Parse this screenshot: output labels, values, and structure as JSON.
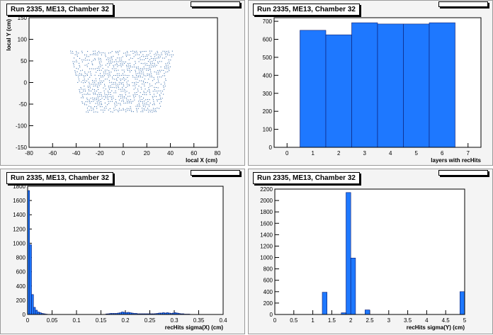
{
  "chart_data": [
    {
      "type": "scatter",
      "title": "Run 2335, ME13, Chamber 32",
      "xlabel": "local X (cm)",
      "ylabel": "local Y (cm)",
      "xlim": [
        -80,
        80
      ],
      "ylim": [
        -150,
        150
      ],
      "xticks": [
        -80,
        -60,
        -40,
        -20,
        0,
        20,
        40,
        60,
        80
      ],
      "yticks": [
        -150,
        -100,
        -50,
        0,
        50,
        100,
        150
      ],
      "scatter_region": {
        "x_at_top": [
          -45,
          43
        ],
        "x_at_bottom": [
          -33,
          30
        ],
        "y_range": [
          -70,
          73
        ]
      }
    },
    {
      "type": "bar",
      "title": "Run 2335, ME13, Chamber 32",
      "xlabel": "layers with recHits",
      "ylabel": "",
      "x": [
        1,
        2,
        3,
        4,
        5,
        6
      ],
      "values": [
        650,
        625,
        692,
        685,
        685,
        692
      ],
      "xlim": [
        -0.5,
        7.5
      ],
      "ylim": [
        0,
        720
      ],
      "xticks": [
        0,
        1,
        2,
        3,
        4,
        5,
        6,
        7
      ],
      "yticks": [
        0,
        100,
        200,
        300,
        400,
        500,
        600,
        700
      ]
    },
    {
      "type": "bar",
      "title": "Run 2335, ME13, Chamber 32",
      "xlabel": "recHits sigma(X) (cm)",
      "ylabel": "",
      "bin_width": 0.004,
      "bins": [
        {
          "x": 0.0,
          "v": 1740
        },
        {
          "x": 0.004,
          "v": 980
        },
        {
          "x": 0.008,
          "v": 280
        },
        {
          "x": 0.012,
          "v": 100
        },
        {
          "x": 0.016,
          "v": 60
        },
        {
          "x": 0.02,
          "v": 35
        },
        {
          "x": 0.024,
          "v": 25
        },
        {
          "x": 0.028,
          "v": 15
        },
        {
          "x": 0.032,
          "v": 10
        },
        {
          "x": 0.036,
          "v": 5
        },
        {
          "x": 0.16,
          "v": 8
        },
        {
          "x": 0.164,
          "v": 10
        },
        {
          "x": 0.168,
          "v": 15
        },
        {
          "x": 0.172,
          "v": 15
        },
        {
          "x": 0.176,
          "v": 15
        },
        {
          "x": 0.18,
          "v": 15
        },
        {
          "x": 0.184,
          "v": 20
        },
        {
          "x": 0.188,
          "v": 25
        },
        {
          "x": 0.192,
          "v": 35
        },
        {
          "x": 0.196,
          "v": 30
        },
        {
          "x": 0.2,
          "v": 25
        },
        {
          "x": 0.204,
          "v": 30
        },
        {
          "x": 0.208,
          "v": 25
        },
        {
          "x": 0.212,
          "v": 20
        },
        {
          "x": 0.216,
          "v": 15
        },
        {
          "x": 0.22,
          "v": 15
        },
        {
          "x": 0.224,
          "v": 10
        },
        {
          "x": 0.228,
          "v": 10
        },
        {
          "x": 0.232,
          "v": 10
        },
        {
          "x": 0.236,
          "v": 10
        },
        {
          "x": 0.24,
          "v": 10
        },
        {
          "x": 0.244,
          "v": 10
        },
        {
          "x": 0.248,
          "v": 10
        },
        {
          "x": 0.252,
          "v": 10
        },
        {
          "x": 0.256,
          "v": 10
        },
        {
          "x": 0.26,
          "v": 12
        },
        {
          "x": 0.264,
          "v": 15
        },
        {
          "x": 0.268,
          "v": 20
        },
        {
          "x": 0.272,
          "v": 20
        },
        {
          "x": 0.276,
          "v": 25
        },
        {
          "x": 0.28,
          "v": 20
        },
        {
          "x": 0.284,
          "v": 25
        },
        {
          "x": 0.288,
          "v": 20
        },
        {
          "x": 0.292,
          "v": 15
        },
        {
          "x": 0.296,
          "v": 20
        },
        {
          "x": 0.3,
          "v": 25
        },
        {
          "x": 0.304,
          "v": 20
        },
        {
          "x": 0.308,
          "v": 15
        },
        {
          "x": 0.312,
          "v": 10
        },
        {
          "x": 0.316,
          "v": 10
        },
        {
          "x": 0.32,
          "v": 5
        },
        {
          "x": 0.324,
          "v": 5
        },
        {
          "x": 0.328,
          "v": 5
        }
      ],
      "xlim": [
        0,
        0.4
      ],
      "ylim": [
        0,
        1800
      ],
      "xticks": [
        0,
        0.05,
        0.1,
        0.15,
        0.2,
        0.25,
        0.3,
        0.35,
        0.4
      ],
      "yticks": [
        0,
        200,
        400,
        600,
        800,
        1000,
        1200,
        1400,
        1600,
        1800
      ]
    },
    {
      "type": "bar",
      "title": "Run 2335, ME13, Chamber 32",
      "xlabel": "recHits sigma(Y) (cm)",
      "ylabel": "",
      "bin_width": 0.125,
      "bins": [
        {
          "x": 1.25,
          "v": 390
        },
        {
          "x": 1.75,
          "v": 30
        },
        {
          "x": 1.875,
          "v": 2140
        },
        {
          "x": 2.0,
          "v": 990
        },
        {
          "x": 2.375,
          "v": 80
        },
        {
          "x": 4.875,
          "v": 400
        }
      ],
      "xlim": [
        0,
        5
      ],
      "ylim": [
        0,
        2200
      ],
      "xticks": [
        0,
        0.5,
        1,
        1.5,
        2,
        2.5,
        3,
        3.5,
        4,
        4.5,
        5
      ],
      "yticks": [
        0,
        200,
        400,
        600,
        800,
        1000,
        1200,
        1400,
        1600,
        1800,
        2000,
        2200
      ]
    }
  ],
  "colors": {
    "fill": "#1e78ff",
    "edge": "#0a1a6e",
    "marker": "#1e5aa0",
    "pad_bg": "#f4f4f4"
  }
}
